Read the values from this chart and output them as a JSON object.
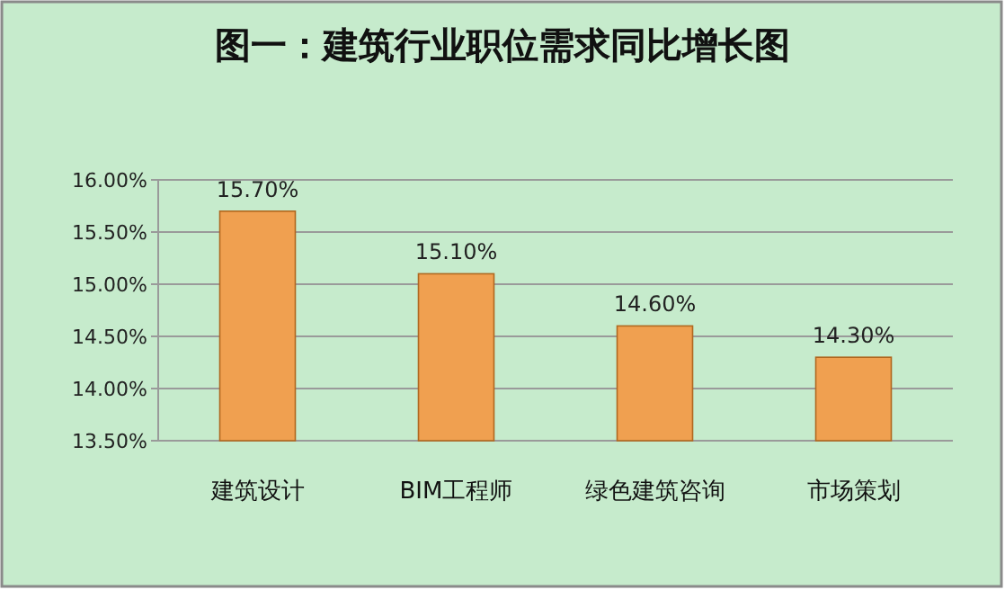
{
  "chart_data": {
    "type": "bar",
    "title": "图一：建筑行业职位需求同比增长图",
    "categories": [
      "建筑设计",
      "BIM工程师",
      "绿色建筑咨询",
      "市场策划"
    ],
    "values": [
      15.7,
      15.1,
      14.6,
      14.3
    ],
    "value_labels": [
      "15.70%",
      "15.10%",
      "14.60%",
      "14.30%"
    ],
    "color": "#f0a050",
    "ylim": [
      13.5,
      16
    ],
    "yticks": [
      {
        "value": 13.5,
        "label": "13.50%"
      },
      {
        "value": 14,
        "label": "14.00%"
      },
      {
        "value": 14.5,
        "label": "14.50%"
      },
      {
        "value": 15,
        "label": "15.00%"
      },
      {
        "value": 15.5,
        "label": "15.50%"
      },
      {
        "value": 16,
        "label": "16.00%"
      }
    ],
    "grid": "y"
  }
}
